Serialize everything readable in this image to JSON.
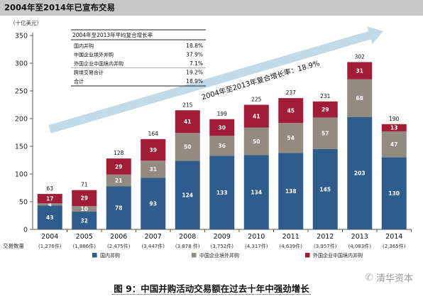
{
  "chart_title": "2004年至2014年已宣布交易",
  "y_unit": "（十亿美元）",
  "count_label": "交易数量",
  "growth_label": "2004年至2013年复合增长率：18.9%",
  "caption": "图 9：中国并购活动交易额在过去十年中强劲增长",
  "watermark": "清华资本",
  "colors": {
    "domestic": "#2e5c8c",
    "outbound": "#938a80",
    "inbound": "#a11c36",
    "arrow": "#c3dbe9",
    "title_bar": "#c8c8c8"
  },
  "cagr_table": {
    "title": "2004年至2013年平均复合增长率",
    "rows": [
      {
        "label": "国内并购",
        "value": "18.8%"
      },
      {
        "label": "中国企业境外并购",
        "value": "37.9%"
      },
      {
        "label": "外国企业中国境内并购",
        "value": "7.1%"
      },
      {
        "label": "跨境交易合计",
        "value": "19.2%"
      },
      {
        "label": "合计",
        "value": "18.9%"
      }
    ]
  },
  "chart_data": {
    "type": "bar",
    "stacked": true,
    "categories": [
      "2004",
      "2005",
      "2006",
      "2007",
      "2008",
      "2009",
      "2010",
      "2011",
      "2012",
      "2013",
      "2014"
    ],
    "deal_counts": [
      "(1,276件)",
      "(1,886件)",
      "(2,475件)",
      "(3,447件)",
      "(3,878 件)",
      "(3,752件)",
      "(4,317件)",
      "(4,639件)",
      "(3,957件)",
      "(4,083件)",
      "(2,365件)"
    ],
    "series": [
      {
        "name": "国内并购",
        "values": [
          43,
          32,
          78,
          93,
          124,
          133,
          134,
          138,
          145,
          203,
          130
        ]
      },
      {
        "name": "中国企业境外并购",
        "values": [
          4,
          10,
          21,
          31,
          50,
          36,
          50,
          54,
          57,
          68,
          47
        ]
      },
      {
        "name": "外国企业中国境内并购",
        "values": [
          17,
          29,
          29,
          39,
          41,
          30,
          41,
          45,
          29,
          31,
          13
        ]
      }
    ],
    "totals": [
      63,
      71,
      128,
      164,
      215,
      199,
      225,
      237,
      231,
      302,
      190
    ],
    "ylim": [
      0,
      350
    ],
    "yticks": [
      0,
      50,
      100,
      150,
      200,
      250,
      300,
      350
    ],
    "grid": false,
    "legend": "bottom"
  }
}
